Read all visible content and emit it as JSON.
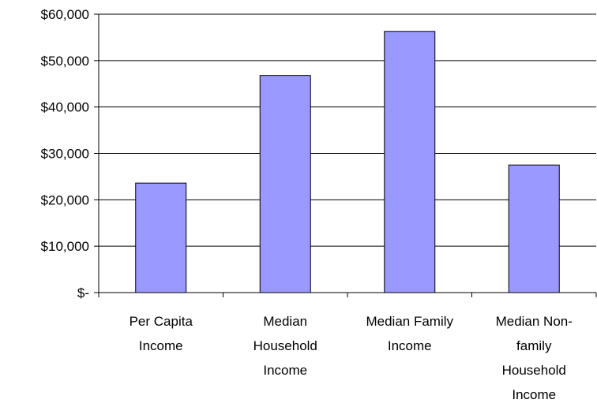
{
  "chart_data": {
    "type": "bar",
    "title": "",
    "xlabel": "",
    "ylabel": "",
    "ylim": [
      0,
      60000
    ],
    "grid": true,
    "legend": "none",
    "y_ticks": [
      "$-",
      "$10,000",
      "$20,000",
      "$30,000",
      "$40,000",
      "$50,000",
      "$60,000"
    ],
    "categories": [
      [
        "Per Capita",
        "Income"
      ],
      [
        "Median",
        "Household",
        "Income"
      ],
      [
        "Median Family",
        "Income"
      ],
      [
        "Median Non-",
        "family",
        "Household",
        "Income"
      ]
    ],
    "values": [
      23600,
      46800,
      56300,
      27500
    ],
    "colors": {
      "bar_fill": "#9999ff",
      "bar_stroke": "#000000",
      "grid": "#000000",
      "axis": "#000000"
    }
  }
}
